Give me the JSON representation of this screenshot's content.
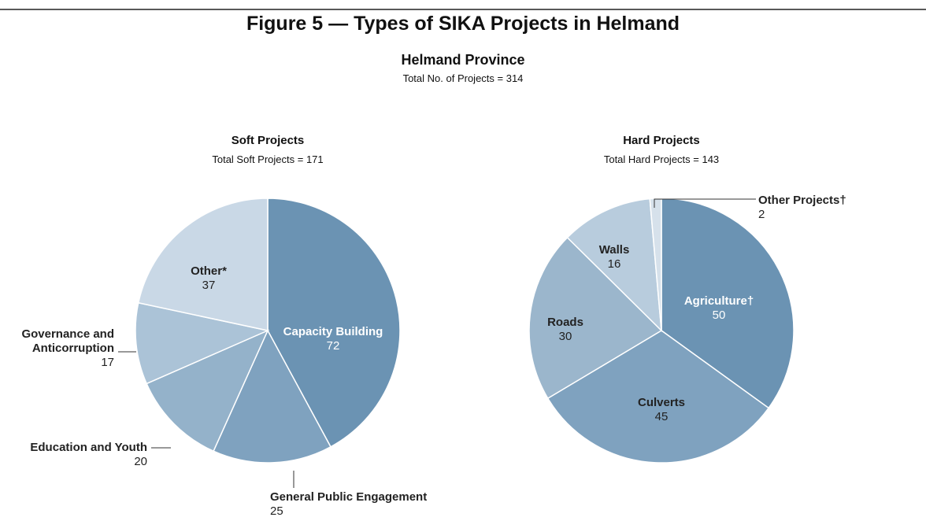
{
  "header": {
    "title": "Figure 5 — Types of SIKA Projects in Helmand",
    "heading": "Helmand Province",
    "subheading": "Total No. of Projects = 314"
  },
  "chart_data": [
    {
      "type": "pie",
      "title": "Soft Projects",
      "subtitle": "Total Soft Projects = 171",
      "categories": [
        "Capacity Building",
        "General Public Engagement",
        "Education and Youth",
        "Governance and Anticorruption",
        "Other*"
      ],
      "values": [
        72,
        25,
        20,
        17,
        37
      ],
      "colors": [
        "#6b93b3",
        "#7fa2bf",
        "#94b2ca",
        "#abc3d7",
        "#c9d8e6"
      ]
    },
    {
      "type": "pie",
      "title": "Hard Projects",
      "subtitle": "Total Hard Projects = 143",
      "categories": [
        "Agriculture†",
        "Culverts",
        "Roads",
        "Walls",
        "Other Projects†"
      ],
      "values": [
        50,
        45,
        30,
        16,
        2
      ],
      "colors": [
        "#6b93b3",
        "#7fa2bf",
        "#9bb6cc",
        "#b8ccdd",
        "#d6e1eb"
      ]
    }
  ]
}
